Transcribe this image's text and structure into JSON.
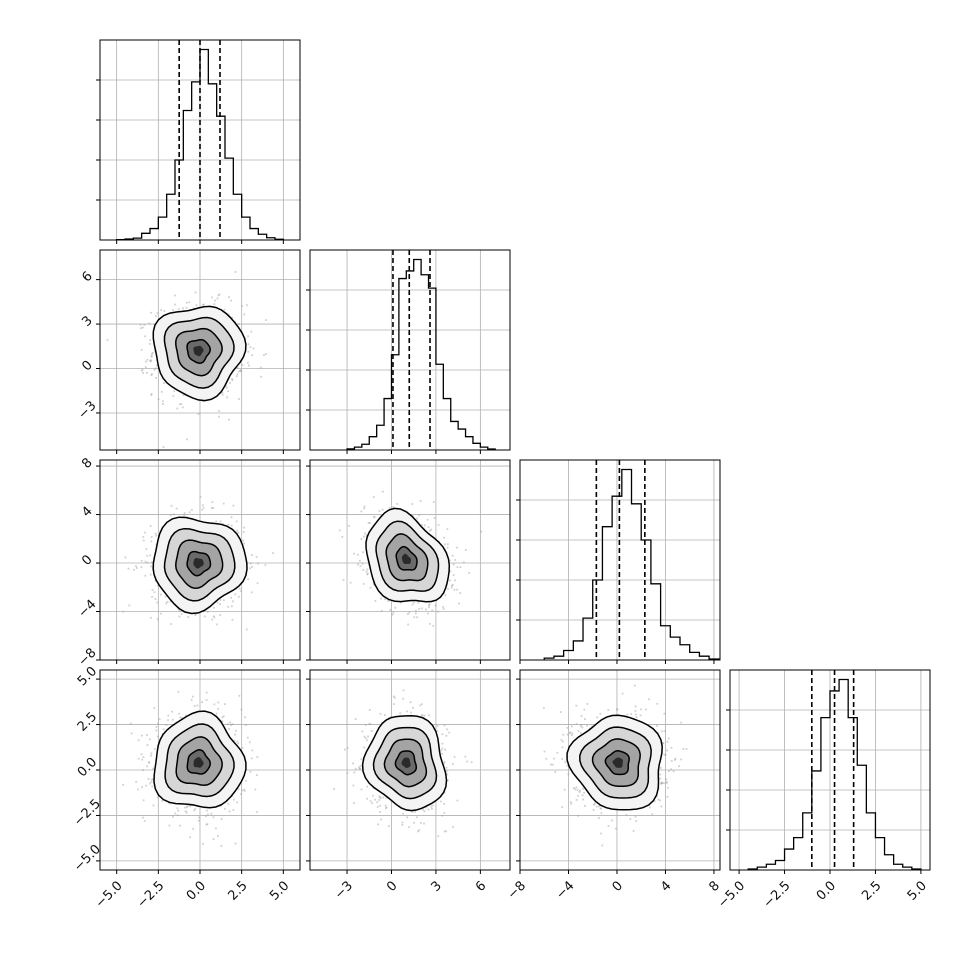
{
  "chart_data": {
    "type": "corner",
    "n_params": 4,
    "grid": true,
    "colors": {
      "line": "#000000",
      "grid": "#b0b0b0",
      "points": "#9a9a9a",
      "background": "#ffffff"
    },
    "quantile_lines": "dashed",
    "params": [
      {
        "index": 0,
        "range": [
          -6,
          6
        ],
        "ticks": [
          -5,
          -2.5,
          0,
          2.5,
          5
        ],
        "tick_labels": [
          "−5.0",
          "−2.5",
          "0.0",
          "2.5",
          "5.0"
        ],
        "quantiles": [
          -1.25,
          0.0,
          1.2
        ],
        "hist": {
          "bin_edges": [
            -5,
            -4.5,
            -4,
            -3.5,
            -3,
            -2.5,
            -2,
            -1.5,
            -1,
            -0.5,
            0,
            0.5,
            1,
            1.5,
            2,
            2.5,
            3,
            3.5,
            4,
            4.5,
            5
          ],
          "counts": [
            0.2,
            0.5,
            1.0,
            3.5,
            6,
            12,
            24,
            42,
            68,
            83,
            100,
            82,
            65,
            43,
            24,
            12,
            6,
            3,
            1.2,
            0.4
          ]
        }
      },
      {
        "index": 1,
        "range": [
          -5.5,
          8.0
        ],
        "ticks": [
          -3,
          0,
          3,
          6
        ],
        "tick_labels": [
          "−3",
          "0",
          "3",
          "6"
        ],
        "quantiles": [
          0.1,
          1.2,
          2.6
        ],
        "hist": {
          "bin_edges": [
            -3,
            -2.5,
            -2,
            -1.5,
            -1,
            -0.5,
            0,
            0.5,
            1,
            1.5,
            2,
            2.5,
            3,
            3.5,
            4,
            4.5,
            5,
            5.5,
            6,
            6.5,
            7
          ],
          "counts": [
            0.6,
            1.5,
            3.0,
            7,
            13,
            27,
            50,
            90,
            94,
            100,
            92,
            85,
            45,
            27,
            15,
            11,
            7,
            3.5,
            1.5,
            0.5
          ]
        }
      },
      {
        "index": 2,
        "range": [
          -8,
          8.5
        ],
        "ticks": [
          -8,
          -4,
          0,
          4,
          8
        ],
        "tick_labels": [
          "−8",
          "−4",
          "0",
          "4",
          "8"
        ],
        "quantiles": [
          -1.7,
          0.2,
          2.3
        ],
        "hist": {
          "bin_edges": [
            -6,
            -5.2,
            -4.4,
            -3.6,
            -2.8,
            -2,
            -1.2,
            -0.4,
            0.4,
            1.2,
            2,
            2.8,
            3.6,
            4.4,
            5.2,
            6,
            6.8,
            7.6,
            8.4
          ],
          "counts": [
            1,
            2,
            5,
            10,
            22,
            42,
            70,
            86,
            100,
            82,
            63,
            40,
            18,
            12,
            8,
            4,
            2,
            0.5
          ]
        }
      },
      {
        "index": 3,
        "range": [
          -5.5,
          5.5
        ],
        "ticks": [
          -5,
          -2.5,
          0,
          2.5,
          5
        ],
        "tick_labels": [
          "−5.0",
          "−2.5",
          "0.0",
          "2.5",
          "5.0"
        ],
        "quantiles": [
          -1.0,
          0.25,
          1.3
        ],
        "hist": {
          "bin_edges": [
            -4.5,
            -4,
            -3.5,
            -3,
            -2.5,
            -2,
            -1.5,
            -1,
            -0.5,
            0,
            0.5,
            1,
            1.5,
            2,
            2.5,
            3,
            3.5,
            4,
            4.5,
            5
          ],
          "counts": [
            0.5,
            1.5,
            3,
            5,
            11,
            17,
            30,
            52,
            80,
            94,
            100,
            80,
            55,
            30,
            17,
            8,
            3,
            1.5,
            0.5
          ]
        }
      }
    ],
    "pairs": [
      {
        "x": 0,
        "y": 1,
        "center": [
          -0.1,
          1.2
        ],
        "sx": 1.35,
        "sy": 1.55,
        "rho": 0.0,
        "n_points": 900
      },
      {
        "x": 0,
        "y": 2,
        "center": [
          -0.1,
          0.0
        ],
        "sx": 1.4,
        "sy": 1.9,
        "rho": 0.0,
        "n_points": 900
      },
      {
        "x": 1,
        "y": 2,
        "center": [
          1.0,
          0.3
        ],
        "sx": 1.4,
        "sy": 1.9,
        "rho": -0.25,
        "n_points": 900
      },
      {
        "x": 0,
        "y": 3,
        "center": [
          -0.1,
          0.4
        ],
        "sx": 1.35,
        "sy": 1.3,
        "rho": 0.0,
        "n_points": 900
      },
      {
        "x": 1,
        "y": 3,
        "center": [
          1.0,
          0.4
        ],
        "sx": 1.35,
        "sy": 1.3,
        "rho": -0.1,
        "n_points": 900
      },
      {
        "x": 2,
        "y": 3,
        "center": [
          0.1,
          0.4
        ],
        "sx": 1.9,
        "sy": 1.3,
        "rho": -0.05,
        "n_points": 900
      }
    ],
    "contour_levels_sigma": [
      0.5,
      1.0,
      1.5,
      2.0
    ]
  }
}
